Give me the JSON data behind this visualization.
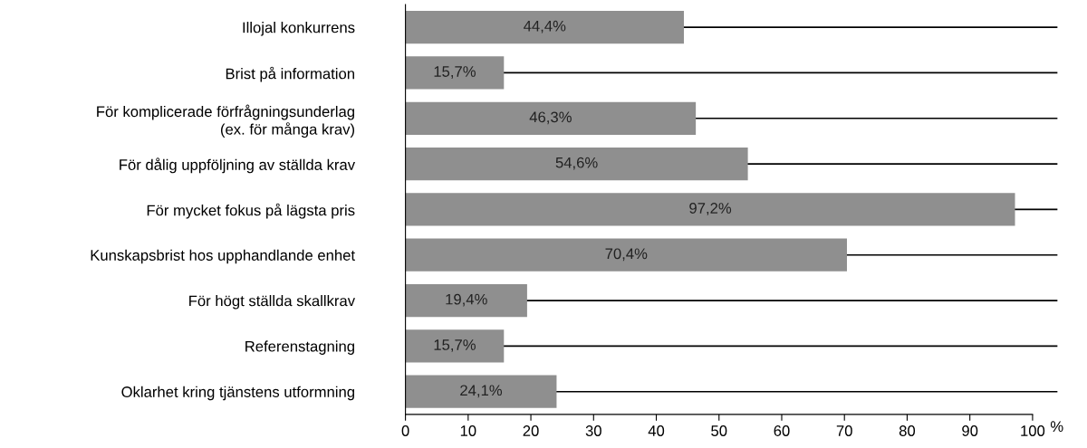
{
  "chart_data": {
    "type": "bar",
    "orientation": "horizontal",
    "xlabel": "%",
    "categories": [
      "Illojal konkurrens",
      "Brist på information",
      "För komplicerade förfrågningsunderlag\n(ex. för många krav)",
      "För dålig uppföljning av ställda krav",
      "För mycket fokus på lägsta pris",
      "Kunskapsbrist hos upphandlande enhet",
      "För högt ställda skallkrav",
      "Referenstagning",
      "Oklarhet kring tjänstens utformning"
    ],
    "values": [
      44.4,
      15.7,
      46.3,
      54.6,
      97.2,
      70.4,
      19.4,
      15.7,
      24.1
    ],
    "value_labels": [
      "44,4%",
      "15,7%",
      "46,3%",
      "54,6%",
      "97,2%",
      "70,4%",
      "19,4%",
      "15,7%",
      "24,1%"
    ],
    "color": "#8f8f8f",
    "xlim": [
      0,
      104
    ],
    "xticks": [
      0,
      10,
      20,
      30,
      40,
      50,
      60,
      70,
      80,
      90,
      100
    ],
    "grid": "y",
    "legend": false
  }
}
